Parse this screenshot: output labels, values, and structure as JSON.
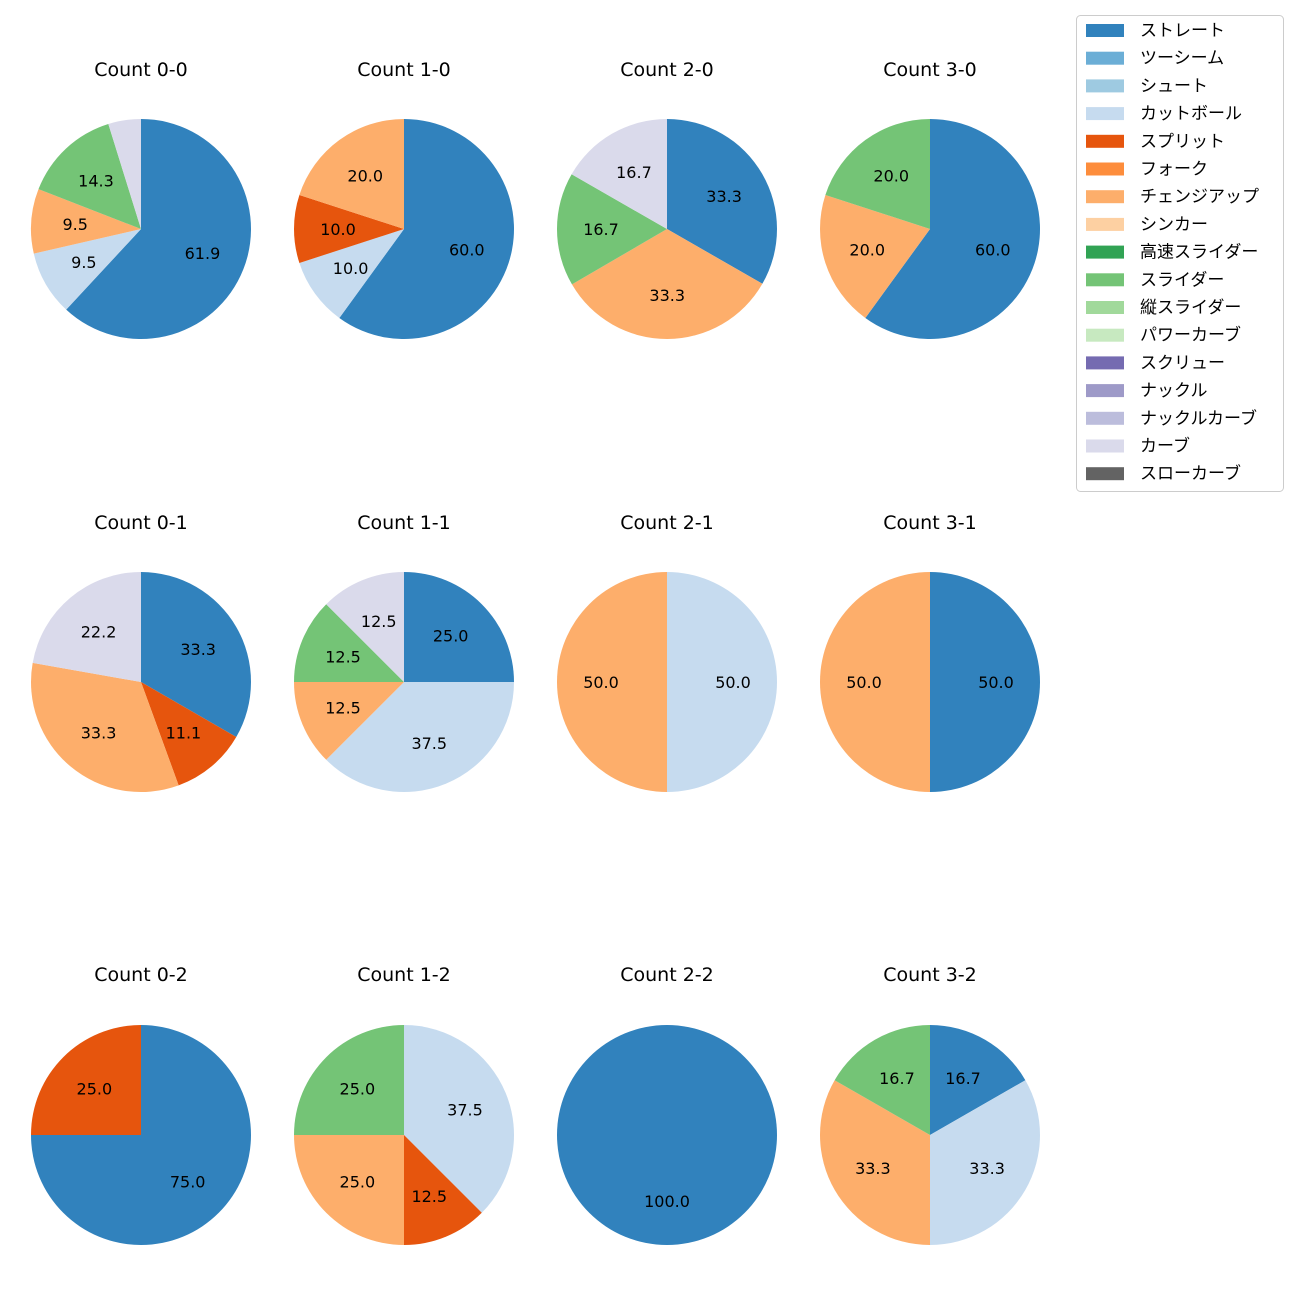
{
  "colors": {
    "ストレート": "#3182bd",
    "ツーシーム": "#6baed6",
    "シュート": "#9ecae1",
    "カットボール": "#c6dbef",
    "スプリット": "#e6550d",
    "フォーク": "#fd8d3c",
    "チェンジアップ": "#fdae6b",
    "シンカー": "#fdd0a2",
    "高速スライダー": "#31a354",
    "スライダー": "#74c476",
    "縦スライダー": "#a1d99b",
    "パワーカーブ": "#c7e9c0",
    "スクリュー": "#756bb1",
    "ナックル": "#9e9ac8",
    "ナックルカーブ": "#bcbddc",
    "カーブ": "#dadaeb",
    "スローカーブ": "#636363"
  },
  "legend": [
    "ストレート",
    "ツーシーム",
    "シュート",
    "カットボール",
    "スプリット",
    "フォーク",
    "チェンジアップ",
    "シンカー",
    "高速スライダー",
    "スライダー",
    "縦スライダー",
    "パワーカーブ",
    "スクリュー",
    "ナックル",
    "ナックルカーブ",
    "カーブ",
    "スローカーブ"
  ],
  "chart_data": [
    {
      "type": "pie",
      "title": "Count 0-0",
      "slices": [
        {
          "label": "ストレート",
          "value": 61.9
        },
        {
          "label": "カットボール",
          "value": 9.5
        },
        {
          "label": "チェンジアップ",
          "value": 9.5
        },
        {
          "label": "スライダー",
          "value": 14.3
        },
        {
          "label": "カーブ",
          "value": 4.8
        }
      ]
    },
    {
      "type": "pie",
      "title": "Count 1-0",
      "slices": [
        {
          "label": "ストレート",
          "value": 60.0
        },
        {
          "label": "カットボール",
          "value": 10.0
        },
        {
          "label": "スプリット",
          "value": 10.0
        },
        {
          "label": "チェンジアップ",
          "value": 20.0
        }
      ]
    },
    {
      "type": "pie",
      "title": "Count 2-0",
      "slices": [
        {
          "label": "ストレート",
          "value": 33.3
        },
        {
          "label": "チェンジアップ",
          "value": 33.3
        },
        {
          "label": "スライダー",
          "value": 16.7
        },
        {
          "label": "カーブ",
          "value": 16.7
        }
      ]
    },
    {
      "type": "pie",
      "title": "Count 3-0",
      "slices": [
        {
          "label": "ストレート",
          "value": 60.0
        },
        {
          "label": "チェンジアップ",
          "value": 20.0
        },
        {
          "label": "スライダー",
          "value": 20.0
        }
      ]
    },
    {
      "type": "pie",
      "title": "Count 0-1",
      "slices": [
        {
          "label": "ストレート",
          "value": 33.3
        },
        {
          "label": "スプリット",
          "value": 11.1
        },
        {
          "label": "チェンジアップ",
          "value": 33.3
        },
        {
          "label": "カーブ",
          "value": 22.2
        }
      ]
    },
    {
      "type": "pie",
      "title": "Count 1-1",
      "slices": [
        {
          "label": "ストレート",
          "value": 25.0
        },
        {
          "label": "カットボール",
          "value": 37.5
        },
        {
          "label": "チェンジアップ",
          "value": 12.5
        },
        {
          "label": "スライダー",
          "value": 12.5
        },
        {
          "label": "カーブ",
          "value": 12.5
        }
      ]
    },
    {
      "type": "pie",
      "title": "Count 2-1",
      "slices": [
        {
          "label": "カットボール",
          "value": 50.0
        },
        {
          "label": "チェンジアップ",
          "value": 50.0
        }
      ]
    },
    {
      "type": "pie",
      "title": "Count 3-1",
      "slices": [
        {
          "label": "ストレート",
          "value": 50.0
        },
        {
          "label": "チェンジアップ",
          "value": 50.0
        }
      ]
    },
    {
      "type": "pie",
      "title": "Count 0-2",
      "slices": [
        {
          "label": "ストレート",
          "value": 75.0
        },
        {
          "label": "スプリット",
          "value": 25.0
        }
      ]
    },
    {
      "type": "pie",
      "title": "Count 1-2",
      "slices": [
        {
          "label": "カットボール",
          "value": 37.5
        },
        {
          "label": "スプリット",
          "value": 12.5
        },
        {
          "label": "チェンジアップ",
          "value": 25.0
        },
        {
          "label": "スライダー",
          "value": 25.0
        }
      ]
    },
    {
      "type": "pie",
      "title": "Count 2-2",
      "slices": [
        {
          "label": "ストレート",
          "value": 100.0
        }
      ]
    },
    {
      "type": "pie",
      "title": "Count 3-2",
      "slices": [
        {
          "label": "ストレート",
          "value": 16.7
        },
        {
          "label": "カットボール",
          "value": 33.3
        },
        {
          "label": "チェンジアップ",
          "value": 33.3
        },
        {
          "label": "スライダー",
          "value": 16.7
        }
      ]
    }
  ]
}
